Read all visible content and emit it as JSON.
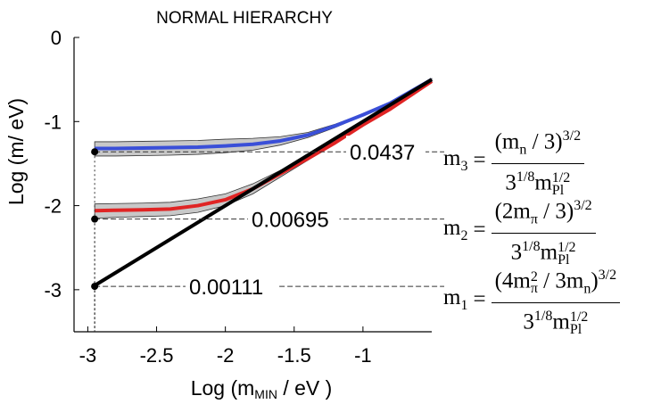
{
  "chart_data": {
    "type": "line",
    "title": "NORMAL HIERARCHY",
    "xlabel": "Log (m",
    "xlabel_sub": "MIN",
    "xlabel_end": " / eV )",
    "ylabel": "Log (m/ eV)",
    "xlim": [
      -3.1,
      -0.5
    ],
    "ylim": [
      -3.5,
      0
    ],
    "x_ticks": [
      -3,
      -2.5,
      -2,
      -1.5,
      -1
    ],
    "x_tick_labels": [
      "-3",
      "-2.5",
      "-2",
      "-1.5",
      "-1"
    ],
    "y_ticks": [
      0,
      -1,
      -2,
      -3
    ],
    "y_tick_labels": [
      "0",
      "-1",
      "-2",
      "-3"
    ],
    "series": [
      {
        "color": "#e02424",
        "band_color": "#c8c8c8",
        "x": [
          -2.95,
          -2.8,
          -2.6,
          -2.4,
          -2.2,
          -2.0,
          -1.8,
          -1.6,
          -1.4,
          -1.2,
          -1.0,
          -0.8,
          -0.5
        ],
        "y": [
          -2.06,
          -2.055,
          -2.05,
          -2.04,
          -2.0,
          -1.93,
          -1.8,
          -1.62,
          -1.44,
          -1.25,
          -1.04,
          -0.85,
          -0.52
        ],
        "band_lo": [
          -2.15,
          -2.14,
          -2.13,
          -2.12,
          -2.08,
          -2.0,
          -1.86,
          -1.66,
          -1.46,
          -1.26,
          -1.05,
          -0.86,
          -0.53
        ],
        "band_hi": [
          -1.98,
          -1.975,
          -1.97,
          -1.96,
          -1.92,
          -1.86,
          -1.74,
          -1.58,
          -1.42,
          -1.24,
          -1.03,
          -0.84,
          -0.51
        ]
      },
      {
        "color": "#3a4fd8",
        "band_color": "#c8c8c8",
        "x": [
          -2.95,
          -2.8,
          -2.6,
          -2.4,
          -2.2,
          -2.0,
          -1.8,
          -1.6,
          -1.4,
          -1.2,
          -1.0,
          -0.8,
          -0.5
        ],
        "y": [
          -1.32,
          -1.32,
          -1.315,
          -1.31,
          -1.305,
          -1.29,
          -1.27,
          -1.23,
          -1.16,
          -1.05,
          -0.92,
          -0.78,
          -0.5
        ],
        "band_lo": [
          -1.41,
          -1.41,
          -1.405,
          -1.4,
          -1.39,
          -1.37,
          -1.34,
          -1.28,
          -1.19,
          -1.07,
          -0.93,
          -0.79,
          -0.51
        ],
        "band_hi": [
          -1.24,
          -1.24,
          -1.235,
          -1.23,
          -1.225,
          -1.21,
          -1.2,
          -1.18,
          -1.13,
          -1.03,
          -0.91,
          -0.77,
          -0.49
        ]
      },
      {
        "color": "#000000",
        "x": [
          -2.95,
          -0.5
        ],
        "y": [
          -2.95,
          -0.5
        ]
      }
    ],
    "markers": [
      {
        "x": -2.95,
        "y": -1.36,
        "label": "0.0437"
      },
      {
        "x": -2.95,
        "y": -2.16,
        "label": "0.00695"
      },
      {
        "x": -2.95,
        "y": -2.96,
        "label": "0.00111"
      }
    ],
    "grid": false
  },
  "formulas": {
    "m3": {
      "lhs": "m",
      "lhs_sub": "3",
      "num": "(m",
      "num_sub": "n",
      "num_mid": " / 3)",
      "num_sup": "3/2",
      "den": "3",
      "den_sup": "1/8",
      "den_m": "m",
      "den_m_sup": "1/2",
      "den_m_sub": "Pl"
    },
    "m2": {
      "lhs": "m",
      "lhs_sub": "2",
      "num": "(2m",
      "num_sub": "π",
      "num_mid": " / 3)",
      "num_sup": "3/2",
      "den": "3",
      "den_sup": "1/8",
      "den_m": "m",
      "den_m_sup": "1/2",
      "den_m_sub": "Pl"
    },
    "m1": {
      "lhs": "m",
      "lhs_sub": "1",
      "num": "(4m",
      "num_sub": "π",
      "num_sup2": "2",
      "num_mid": " / 3m",
      "num_sub2": "n",
      "num_end": ")",
      "num_sup": "3/2",
      "den": "3",
      "den_sup": "1/8",
      "den_m": "m",
      "den_m_sup": "1/2",
      "den_m_sub": "Pl"
    }
  }
}
